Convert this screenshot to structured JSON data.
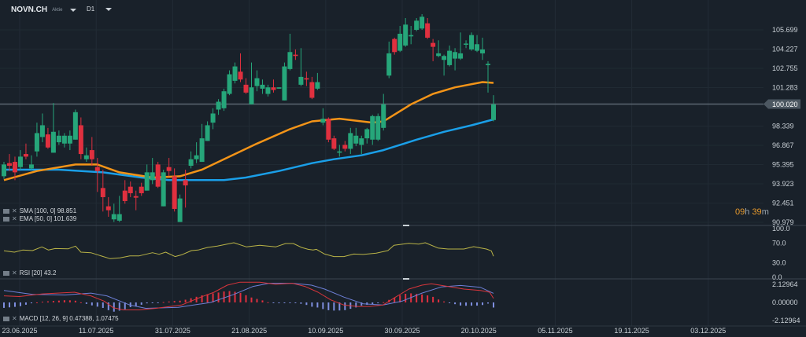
{
  "header": {
    "symbol": "NOVN.CH",
    "type": "Aktie",
    "timeframe": "D1"
  },
  "legend": {
    "sma": "SMA [100, 0] 98.851",
    "ema": "EMA [50, 0] 101.639",
    "rsi": "RSI [20] 43.2",
    "macd": "MACD [12, 26, 9] 0.47388,  1.07475"
  },
  "countdown": {
    "hours": "09",
    "h": "h",
    "minutes": "39",
    "m": "m"
  },
  "colors": {
    "bg": "#19212a",
    "up": "#26a67a",
    "down": "#e0303f",
    "ema": "#f39418",
    "sma": "#1a9fe8",
    "rsi": "#b9b347",
    "macd": "#d8353b",
    "signal": "#6d7fd6",
    "hist_up": "#e0303f",
    "hist_down": "#7f8fe0"
  },
  "chart_data": {
    "type": "candlestick",
    "title": "NOVN.CH D1",
    "current_price": "100.020",
    "price_axis": {
      "range": [
        90.979,
        105.699
      ],
      "ticks": [
        "105.699",
        "104.227",
        "102.755",
        "101.283",
        "98.339",
        "96.867",
        "95.395",
        "93.923",
        "92.451",
        "90.979"
      ]
    },
    "x_ticks": [
      "23.06.2025",
      "11.07.2025",
      "31.07.2025",
      "21.08.2025",
      "10.09.2025",
      "30.09.2025",
      "20.10.2025",
      "05.11.2025",
      "19.11.2025",
      "03.12.2025"
    ],
    "candles_ohlc": [
      [
        94.5,
        95.6,
        94.3,
        95.4
      ],
      [
        95.5,
        96.2,
        94.9,
        95.3
      ],
      [
        95.6,
        96.0,
        94.2,
        94.8
      ],
      [
        95.2,
        96.5,
        95.0,
        96.0
      ],
      [
        96.2,
        97.0,
        95.8,
        96.0
      ],
      [
        95.1,
        96.1,
        95.0,
        95.4
      ],
      [
        96.4,
        98.6,
        96.0,
        97.8
      ],
      [
        97.5,
        99.3,
        97.1,
        98.4
      ],
      [
        97.7,
        98.2,
        96.6,
        96.7
      ],
      [
        96.3,
        100.1,
        96.3,
        97.9
      ],
      [
        97.1,
        98.0,
        96.9,
        97.6
      ],
      [
        97.0,
        97.8,
        96.7,
        97.6
      ],
      [
        97.0,
        98.0,
        96.5,
        97.6
      ],
      [
        97.3,
        99.6,
        97.3,
        99.4
      ],
      [
        98.4,
        99.0,
        95.8,
        96.2
      ],
      [
        95.8,
        96.7,
        95.6,
        96.1
      ],
      [
        96.5,
        97.5,
        95.3,
        95.8
      ],
      [
        95.2,
        95.9,
        93.3,
        94.9
      ],
      [
        93.6,
        95.0,
        91.8,
        92.9
      ],
      [
        92.2,
        92.9,
        91.4,
        91.9
      ],
      [
        91.2,
        92.4,
        91.0,
        91.6
      ],
      [
        91.1,
        93.0,
        91.0,
        91.6
      ],
      [
        93.4,
        94.2,
        92.4,
        92.6
      ],
      [
        93.7,
        94.1,
        92.9,
        93.2
      ],
      [
        92.98,
        93.4,
        91.9,
        92.86
      ],
      [
        93.7,
        94.0,
        93.0,
        93.2
      ],
      [
        93.4,
        95.4,
        93.4,
        94.8
      ],
      [
        94.2,
        95.9,
        93.9,
        94.8
      ],
      [
        95.4,
        95.6,
        93.6,
        93.7
      ],
      [
        92.2,
        95.0,
        92.2,
        94.8
      ],
      [
        95.2,
        95.9,
        94.5,
        94.9
      ],
      [
        94.5,
        95.1,
        91.8,
        92.0
      ],
      [
        91.0,
        93.1,
        91.0,
        92.8
      ],
      [
        94.2,
        95.0,
        92.1,
        93.8
      ],
      [
        95.3,
        96.4,
        95.1,
        95.8
      ],
      [
        95.8,
        97.1,
        95.5,
        96.1
      ],
      [
        95.6,
        98.5,
        95.6,
        97.4
      ],
      [
        97.2,
        98.7,
        97.2,
        98.4
      ],
      [
        98.6,
        99.7,
        98.1,
        99.3
      ],
      [
        99.6,
        100.4,
        99.2,
        100.2
      ],
      [
        99.7,
        101.2,
        99.5,
        101.0
      ],
      [
        100.8,
        102.6,
        100.7,
        102.3
      ],
      [
        101.8,
        103.2,
        101.6,
        102.9
      ],
      [
        102.5,
        103.9,
        101.7,
        101.9
      ],
      [
        101.5,
        102.0,
        100.8,
        100.9
      ],
      [
        100.0,
        103.2,
        100.0,
        101.3
      ],
      [
        101.4,
        102.6,
        101.0,
        102.0
      ],
      [
        101.2,
        101.9,
        100.8,
        101.5
      ],
      [
        100.8,
        101.5,
        100.6,
        101.3
      ],
      [
        101.3,
        101.9,
        100.9,
        101.1
      ],
      [
        101.2,
        101.3,
        101.2,
        101.3
      ],
      [
        100.3,
        103.2,
        100.3,
        102.9
      ],
      [
        102.7,
        105.4,
        102.6,
        104.0
      ],
      [
        103.8,
        104.2,
        103.4,
        103.7
      ],
      [
        101.5,
        104.3,
        101.4,
        102.1
      ],
      [
        102.0,
        102.5,
        101.4,
        101.9
      ],
      [
        101.7,
        102.1,
        100.4,
        100.5
      ],
      [
        101.2,
        102.4,
        101.1,
        101.7
      ],
      [
        98.6,
        99.7,
        98.4,
        98.9
      ],
      [
        98.9,
        99.0,
        97.1,
        97.3
      ],
      [
        97.4,
        97.6,
        96.5,
        96.6
      ],
      [
        96.3,
        96.9,
        96.0,
        96.4
      ],
      [
        96.9,
        97.2,
        96.4,
        96.6
      ],
      [
        96.6,
        98.2,
        96.2,
        97.8
      ],
      [
        97.0,
        98.2,
        96.8,
        97.6
      ],
      [
        96.9,
        97.6,
        96.2,
        97.4
      ],
      [
        97.4,
        98.2,
        97.0,
        98.1
      ],
      [
        97.3,
        99.2,
        96.9,
        99.1
      ],
      [
        97.3,
        99.3,
        97.2,
        99.1
      ],
      [
        98.2,
        100.8,
        98.0,
        100.0
      ],
      [
        102.2,
        104.8,
        102.0,
        103.9
      ],
      [
        105.0,
        105.1,
        103.8,
        104.0
      ],
      [
        104.1,
        106.0,
        104.0,
        105.4
      ],
      [
        104.5,
        106.6,
        104.4,
        106.1
      ],
      [
        105.2,
        106.0,
        104.6,
        105.3
      ],
      [
        105.7,
        106.6,
        105.6,
        106.4
      ],
      [
        105.8,
        106.9,
        105.7,
        106.7
      ],
      [
        106.2,
        106.6,
        105.0,
        105.1
      ],
      [
        104.7,
        105.0,
        103.3,
        104.4
      ],
      [
        103.7,
        104.9,
        103.6,
        103.9
      ],
      [
        103.4,
        103.8,
        102.2,
        103.7
      ],
      [
        103.0,
        104.5,
        102.9,
        104.1
      ],
      [
        103.5,
        104.3,
        102.6,
        104.0
      ],
      [
        103.5,
        105.5,
        103.4,
        103.9
      ],
      [
        104.6,
        104.9,
        104.3,
        104.65
      ],
      [
        104.2,
        105.5,
        104.1,
        105.3
      ],
      [
        104.1,
        105.3,
        104.0,
        104.6
      ],
      [
        103.9,
        105.1,
        103.4,
        104.2
      ],
      [
        103.0,
        103.3,
        100.9,
        103.1
      ],
      [
        98.8,
        100.7,
        98.7,
        100.0
      ]
    ],
    "sma_100": [
      [
        0,
        95.0
      ],
      [
        10,
        95.0
      ],
      [
        18,
        94.8
      ],
      [
        25,
        94.4
      ],
      [
        30,
        94.2
      ],
      [
        40,
        94.2
      ],
      [
        44,
        94.4
      ],
      [
        50,
        94.9
      ],
      [
        56,
        95.5
      ],
      [
        60,
        95.8
      ],
      [
        65,
        96.1
      ],
      [
        69,
        96.5
      ],
      [
        75,
        97.3
      ],
      [
        80,
        97.9
      ],
      [
        85,
        98.4
      ],
      [
        89,
        98.85
      ]
    ],
    "ema_50": [
      [
        0,
        94.2
      ],
      [
        6,
        94.9
      ],
      [
        13,
        95.4
      ],
      [
        17,
        95.4
      ],
      [
        21,
        94.8
      ],
      [
        27,
        94.4
      ],
      [
        32,
        94.5
      ],
      [
        36,
        95.0
      ],
      [
        41,
        96.0
      ],
      [
        46,
        97.0
      ],
      [
        52,
        98.1
      ],
      [
        56,
        98.7
      ],
      [
        61,
        98.9
      ],
      [
        67,
        98.6
      ],
      [
        69,
        98.7
      ],
      [
        74,
        100.0
      ],
      [
        78,
        100.8
      ],
      [
        82,
        101.3
      ],
      [
        87,
        101.7
      ],
      [
        89,
        101.64
      ]
    ],
    "rsi": {
      "axis_ticks": [
        "100.0",
        "70.0",
        "30.0",
        "0.0"
      ],
      "range": [
        0,
        100
      ],
      "points": [
        [
          0,
          54.3
        ],
        [
          1.9,
          51.6
        ],
        [
          3.4,
          55.9
        ],
        [
          5.2,
          54.8
        ],
        [
          6.9,
          62.4
        ],
        [
          8.1,
          55.9
        ],
        [
          9.3,
          59.1
        ],
        [
          11.7,
          58.6
        ],
        [
          13,
          64.0
        ],
        [
          14,
          51.6
        ],
        [
          15.8,
          50.5
        ],
        [
          19.3,
          38.2
        ],
        [
          21.1,
          39.8
        ],
        [
          22.9,
          44.1
        ],
        [
          24.6,
          44.1
        ],
        [
          27,
          50.5
        ],
        [
          28.2,
          47.3
        ],
        [
          29.4,
          51.6
        ],
        [
          31.1,
          42.5
        ],
        [
          32.3,
          46.2
        ],
        [
          34.1,
          54.8
        ],
        [
          35.3,
          55.9
        ],
        [
          37,
          61.3
        ],
        [
          38.8,
          64.0
        ],
        [
          41.8,
          71.0
        ],
        [
          44.1,
          62.4
        ],
        [
          46.5,
          65.6
        ],
        [
          49.4,
          62.4
        ],
        [
          51.2,
          69.4
        ],
        [
          52.6,
          69.4
        ],
        [
          54.1,
          61.3
        ],
        [
          55.3,
          57.5
        ],
        [
          56.2,
          55.9
        ],
        [
          56.8,
          57.5
        ],
        [
          58.3,
          47.8
        ],
        [
          60,
          42.5
        ],
        [
          61.8,
          42.5
        ],
        [
          63.6,
          47.8
        ],
        [
          65.3,
          47.0
        ],
        [
          67.7,
          49.5
        ],
        [
          69.8,
          54.8
        ],
        [
          70.9,
          65.6
        ],
        [
          73.6,
          69.9
        ],
        [
          75.4,
          68.0
        ],
        [
          76.6,
          71.0
        ],
        [
          78.9,
          60.2
        ],
        [
          80.7,
          58.1
        ],
        [
          83.6,
          58.1
        ],
        [
          85.4,
          62.9
        ],
        [
          87.7,
          58.1
        ],
        [
          88.6,
          54.3
        ],
        [
          89,
          43.2
        ]
      ]
    },
    "macd": {
      "axis_ticks": [
        "2.12964",
        "0.00000",
        "-2.12964"
      ],
      "range": [
        -2.12964,
        2.12964
      ],
      "macd_line": [
        [
          0,
          0.78
        ],
        [
          2.8,
          0.69
        ],
        [
          7,
          1.01
        ],
        [
          12.8,
          1.2
        ],
        [
          15.8,
          0.78
        ],
        [
          18.2,
          0.16
        ],
        [
          19.9,
          -0.63
        ],
        [
          21.7,
          -0.88
        ],
        [
          24.6,
          -0.88
        ],
        [
          27.6,
          -0.69
        ],
        [
          32.3,
          -0.31
        ],
        [
          35.8,
          0.63
        ],
        [
          38.2,
          1.2
        ],
        [
          40.6,
          2.04
        ],
        [
          42.9,
          2.39
        ],
        [
          46.5,
          2.39
        ],
        [
          49.4,
          2.14
        ],
        [
          52.4,
          2.26
        ],
        [
          54.7,
          1.89
        ],
        [
          57.1,
          1.2
        ],
        [
          59.4,
          0.31
        ],
        [
          61.8,
          -0.31
        ],
        [
          64.2,
          -0.47
        ],
        [
          66.5,
          -0.47
        ],
        [
          68.9,
          -0.31
        ],
        [
          71.2,
          0.63
        ],
        [
          73.6,
          1.57
        ],
        [
          76,
          2.04
        ],
        [
          77.7,
          2.2
        ],
        [
          80.7,
          1.89
        ],
        [
          83.6,
          1.57
        ],
        [
          86.6,
          1.42
        ],
        [
          88.3,
          1.2
        ],
        [
          89,
          0.47388
        ]
      ],
      "signal_line": [
        [
          0,
          1.42
        ],
        [
          5.2,
          0.94
        ],
        [
          11.1,
          0.88
        ],
        [
          15.8,
          1.1
        ],
        [
          18.7,
          0.78
        ],
        [
          22.9,
          -0.31
        ],
        [
          25.8,
          -0.69
        ],
        [
          31.7,
          -0.57
        ],
        [
          37.6,
          0.0
        ],
        [
          41.8,
          0.94
        ],
        [
          45.3,
          1.89
        ],
        [
          48.2,
          2.26
        ],
        [
          52.4,
          2.26
        ],
        [
          55.9,
          2.04
        ],
        [
          58.3,
          1.57
        ],
        [
          61.8,
          0.63
        ],
        [
          65.3,
          -0.16
        ],
        [
          68.9,
          -0.31
        ],
        [
          72.4,
          0.16
        ],
        [
          76,
          1.1
        ],
        [
          79.5,
          1.82
        ],
        [
          83,
          2.0
        ],
        [
          86.6,
          1.79
        ],
        [
          89,
          1.07475
        ]
      ]
    }
  }
}
